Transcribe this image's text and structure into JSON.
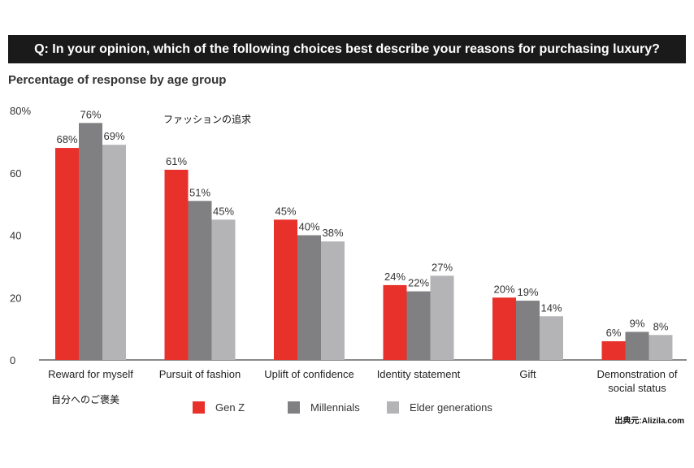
{
  "header": {
    "question": "Q: In your opinion, which of the following choices best describe your reasons for purchasing luxury?"
  },
  "notes": {
    "fashion_jp": "ファッションの追求",
    "reward_jp": "自分へのご褒美",
    "source": "出典元:Alizila.com"
  },
  "colors": {
    "genz": "#e8312b",
    "millennials": "#808083",
    "elder": "#b4b4b6"
  },
  "chart_data": {
    "type": "bar",
    "title": "Percentage of response by age group",
    "categories": [
      "Reward for myself",
      "Pursuit of fashion",
      "Uplift of confidence",
      "Identity statement",
      "Gift",
      "Demonstration of social status"
    ],
    "category_lines": [
      [
        "Reward for myself"
      ],
      [
        "Pursuit of fashion"
      ],
      [
        "Uplift of confidence"
      ],
      [
        "Identity statement"
      ],
      [
        "Gift"
      ],
      [
        "Demonstration of",
        "social status"
      ]
    ],
    "series": [
      {
        "name": "Gen Z",
        "values": [
          68,
          61,
          45,
          24,
          20,
          6
        ],
        "labels": [
          "68%",
          "61%",
          "45%",
          "24%",
          "20%",
          "6%"
        ]
      },
      {
        "name": "Millennials",
        "values": [
          76,
          51,
          40,
          22,
          19,
          9
        ],
        "labels": [
          "76%",
          "51%",
          "40%",
          "22%",
          "19%",
          "9%"
        ]
      },
      {
        "name": "Elder generations",
        "values": [
          69,
          45,
          38,
          27,
          14,
          8
        ],
        "labels": [
          "69%",
          "45%",
          "38%",
          "27%",
          "14%",
          "8%"
        ]
      }
    ],
    "ylim": [
      0,
      80
    ],
    "yticks": [
      "0",
      "20",
      "40",
      "60",
      "80%"
    ],
    "grid": false,
    "legend": "bottom"
  }
}
